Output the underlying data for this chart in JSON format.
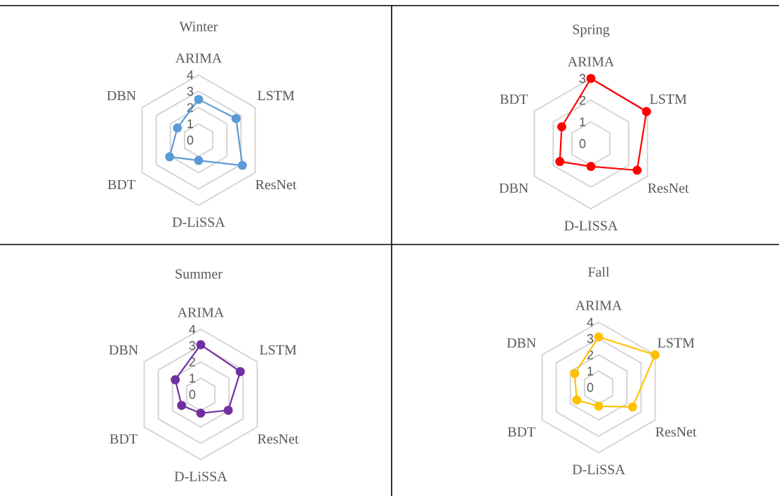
{
  "chart_data": [
    {
      "type": "radar",
      "title": "Winter",
      "categories": [
        "ARIMA",
        "LSTM",
        "ResNet",
        "D-LiSSA",
        "BDT",
        "DBN"
      ],
      "series": [
        {
          "color": "#5b9bd5",
          "values": [
            2.5,
            2.65,
            3.1,
            1.25,
            2.05,
            1.5
          ]
        }
      ],
      "ylim": [
        0,
        4
      ],
      "yticks": [
        0,
        1,
        2,
        3,
        4
      ],
      "grid": true,
      "marker": "circle"
    },
    {
      "type": "radar",
      "title": "Spring",
      "categories": [
        "ARIMA",
        "LSTM",
        "ResNet",
        "D-LISSA",
        "DBN",
        "BDT"
      ],
      "series": [
        {
          "color": "#ff0000",
          "values": [
            3.0,
            2.95,
            2.45,
            1.05,
            1.65,
            1.55
          ]
        }
      ],
      "ylim": [
        0,
        3
      ],
      "yticks": [
        0,
        1,
        2,
        3
      ],
      "grid": true,
      "marker": "circle"
    },
    {
      "type": "radar",
      "title": "Summer",
      "categories": [
        "ARIMA",
        "LSTM",
        "ResNet",
        "D-LiSSA",
        "BDT",
        "DBN"
      ],
      "series": [
        {
          "color": "#7030a0",
          "values": [
            3.05,
            2.8,
            1.95,
            1.15,
            1.35,
            1.8
          ]
        }
      ],
      "ylim": [
        0,
        4
      ],
      "yticks": [
        0,
        1,
        2,
        3,
        4
      ],
      "grid": true,
      "marker": "circle"
    },
    {
      "type": "radar",
      "title": "Fall",
      "categories": [
        "ARIMA",
        "LSTM",
        "ResNet",
        "D-LiSSA",
        "BDT",
        "DBN"
      ],
      "series": [
        {
          "color": "#ffc000",
          "values": [
            3.1,
            4.0,
            2.4,
            1.15,
            1.55,
            1.7
          ]
        }
      ],
      "ylim": [
        0,
        4
      ],
      "yticks": [
        0,
        1,
        2,
        3,
        4
      ],
      "grid": true,
      "marker": "circle"
    }
  ]
}
